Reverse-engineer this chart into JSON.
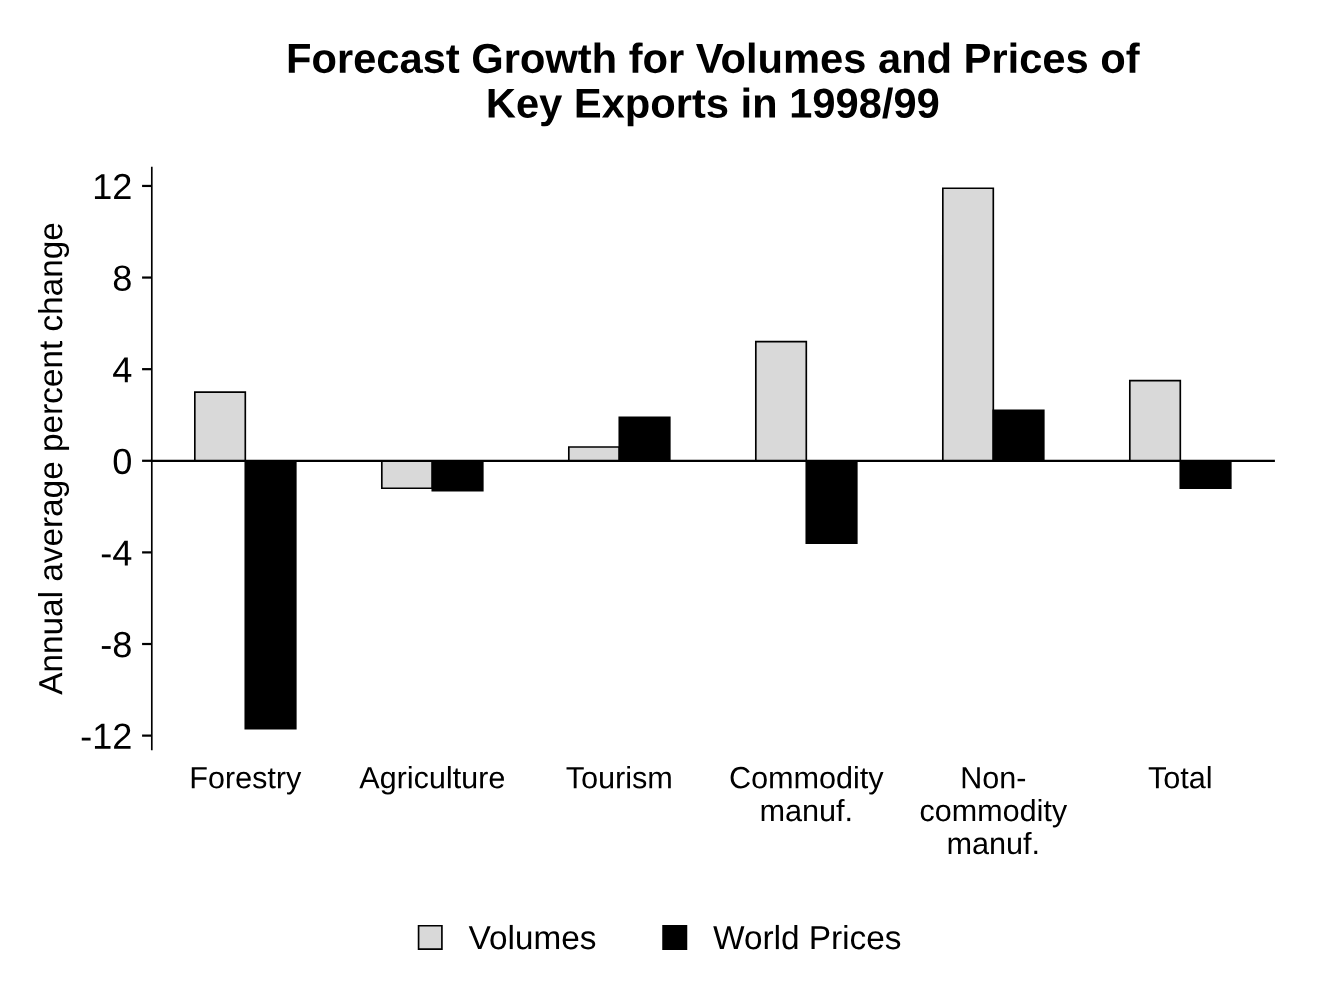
{
  "chart_data": {
    "type": "bar",
    "title": "Forecast Growth for Volumes and Prices of\nKey Exports in 1998/99",
    "ylabel": "Annual average percent change",
    "categories": [
      "Forestry",
      "Agriculture",
      "Tourism",
      "Commodity\nmanuf.",
      "Non-\ncommodity\nmanuf.",
      "Total"
    ],
    "series": [
      {
        "name": "Volumes",
        "color": "#d9d9d9",
        "values": [
          3.0,
          -1.2,
          0.6,
          5.2,
          11.9,
          3.5
        ]
      },
      {
        "name": "World Prices",
        "color": "#000000",
        "values": [
          -11.7,
          -1.3,
          1.9,
          -3.6,
          2.2,
          -1.2
        ]
      }
    ],
    "ylim": [
      -12.6,
      12.8
    ],
    "yticks": [
      12,
      8,
      4,
      0,
      -4,
      -8,
      -12
    ],
    "legend": "bottom"
  }
}
